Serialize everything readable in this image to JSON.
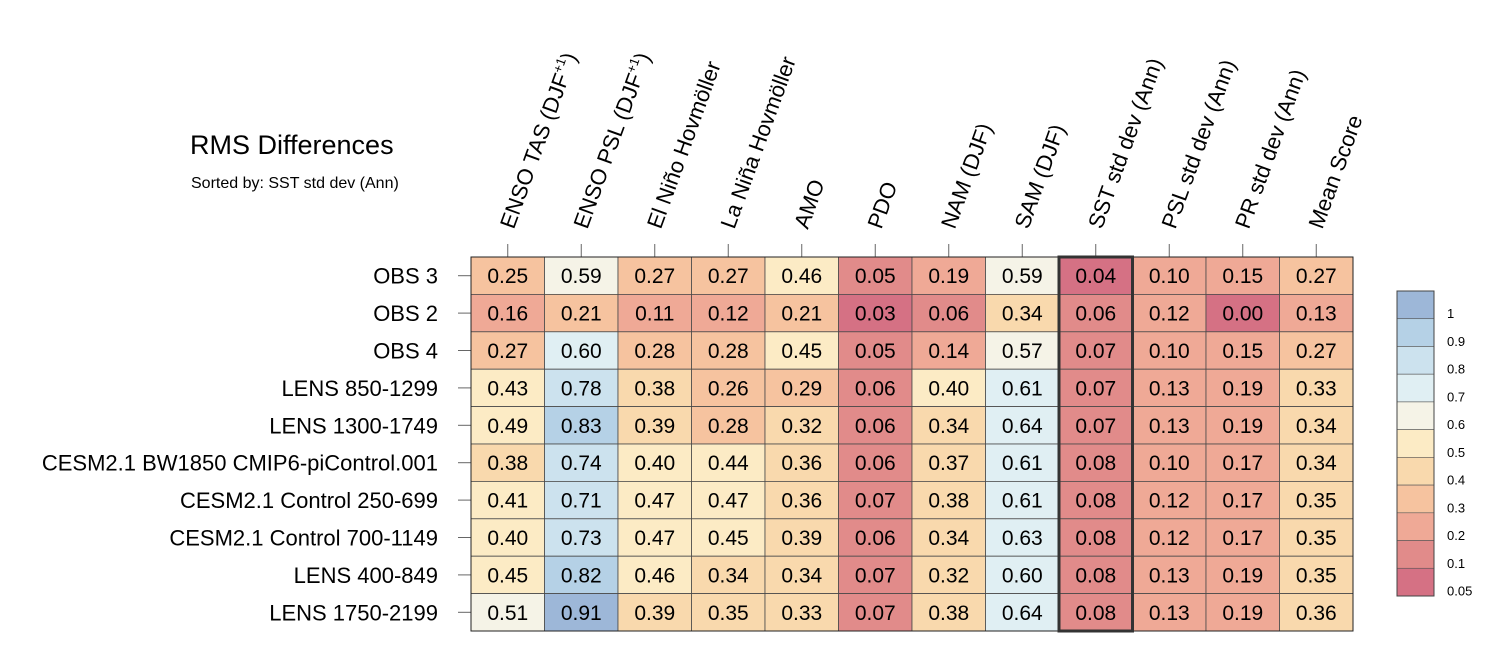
{
  "chart_data": {
    "type": "heatmap",
    "title": "RMS Differences",
    "subtitle": "Sorted by: SST std dev (Ann)",
    "highlighted_column": "SST std dev (Ann)",
    "columns": [
      {
        "label": "ENSO TAS (DJF",
        "sup": "+1",
        "tail": ")"
      },
      {
        "label": "ENSO PSL (DJF",
        "sup": "+1",
        "tail": ")"
      },
      {
        "label": "El Niño Hovmöller",
        "sup": "",
        "tail": ""
      },
      {
        "label": "La Niña Hovmöller",
        "sup": "",
        "tail": ""
      },
      {
        "label": "AMO",
        "sup": "",
        "tail": ""
      },
      {
        "label": "PDO",
        "sup": "",
        "tail": ""
      },
      {
        "label": "NAM (DJF)",
        "sup": "",
        "tail": ""
      },
      {
        "label": "SAM (DJF)",
        "sup": "",
        "tail": ""
      },
      {
        "label": "SST std dev (Ann)",
        "sup": "",
        "tail": ""
      },
      {
        "label": "PSL std dev (Ann)",
        "sup": "",
        "tail": ""
      },
      {
        "label": "PR std dev (Ann)",
        "sup": "",
        "tail": ""
      },
      {
        "label": "Mean Score",
        "sup": "",
        "tail": ""
      }
    ],
    "rows": [
      "OBS 3",
      "OBS 2",
      "OBS 4",
      "LENS 850-1299",
      "LENS 1300-1749",
      "CESM2.1 BW1850 CMIP6-piControl.001",
      "CESM2.1 Control 250-699",
      "CESM2.1 Control 700-1149",
      "LENS 400-849",
      "LENS 1750-2199"
    ],
    "values": [
      [
        "0.25",
        "0.59",
        "0.27",
        "0.27",
        "0.46",
        "0.05",
        "0.19",
        "0.59",
        "0.04",
        "0.10",
        "0.15",
        "0.27"
      ],
      [
        "0.16",
        "0.21",
        "0.11",
        "0.12",
        "0.21",
        "0.03",
        "0.06",
        "0.34",
        "0.06",
        "0.12",
        "0.00",
        "0.13"
      ],
      [
        "0.27",
        "0.60",
        "0.28",
        "0.28",
        "0.45",
        "0.05",
        "0.14",
        "0.57",
        "0.07",
        "0.10",
        "0.15",
        "0.27"
      ],
      [
        "0.43",
        "0.78",
        "0.38",
        "0.26",
        "0.29",
        "0.06",
        "0.40",
        "0.61",
        "0.07",
        "0.13",
        "0.19",
        "0.33"
      ],
      [
        "0.49",
        "0.83",
        "0.39",
        "0.28",
        "0.32",
        "0.06",
        "0.34",
        "0.64",
        "0.07",
        "0.13",
        "0.19",
        "0.34"
      ],
      [
        "0.38",
        "0.74",
        "0.40",
        "0.44",
        "0.36",
        "0.06",
        "0.37",
        "0.61",
        "0.08",
        "0.10",
        "0.17",
        "0.34"
      ],
      [
        "0.41",
        "0.71",
        "0.47",
        "0.47",
        "0.36",
        "0.07",
        "0.38",
        "0.61",
        "0.08",
        "0.12",
        "0.17",
        "0.35"
      ],
      [
        "0.40",
        "0.73",
        "0.47",
        "0.45",
        "0.39",
        "0.06",
        "0.34",
        "0.63",
        "0.08",
        "0.12",
        "0.17",
        "0.35"
      ],
      [
        "0.45",
        "0.82",
        "0.46",
        "0.34",
        "0.34",
        "0.07",
        "0.32",
        "0.60",
        "0.08",
        "0.13",
        "0.19",
        "0.35"
      ],
      [
        "0.51",
        "0.91",
        "0.39",
        "0.35",
        "0.33",
        "0.07",
        "0.38",
        "0.64",
        "0.08",
        "0.13",
        "0.19",
        "0.36"
      ]
    ],
    "colorbar": {
      "ticks": [
        "1",
        "0.9",
        "0.8",
        "0.7",
        "0.6",
        "0.5",
        "0.4",
        "0.3",
        "0.2",
        "0.1",
        "0.05"
      ],
      "bins": [
        {
          "lo": 0.0,
          "hi": 0.05,
          "color": "#d57184"
        },
        {
          "lo": 0.05,
          "hi": 0.1,
          "color": "#e18b8a"
        },
        {
          "lo": 0.1,
          "hi": 0.2,
          "color": "#efa996"
        },
        {
          "lo": 0.2,
          "hi": 0.3,
          "color": "#f6c39f"
        },
        {
          "lo": 0.3,
          "hi": 0.4,
          "color": "#f9d9ad"
        },
        {
          "lo": 0.4,
          "hi": 0.5,
          "color": "#fcebc5"
        },
        {
          "lo": 0.5,
          "hi": 0.6,
          "color": "#f5f3e7"
        },
        {
          "lo": 0.6,
          "hi": 0.7,
          "color": "#e0eff3"
        },
        {
          "lo": 0.7,
          "hi": 0.8,
          "color": "#cce2ee"
        },
        {
          "lo": 0.8,
          "hi": 0.9,
          "color": "#b5d1e6"
        },
        {
          "lo": 0.9,
          "hi": 1.0,
          "color": "#9db7d8"
        }
      ],
      "range": [
        0,
        1
      ]
    }
  }
}
